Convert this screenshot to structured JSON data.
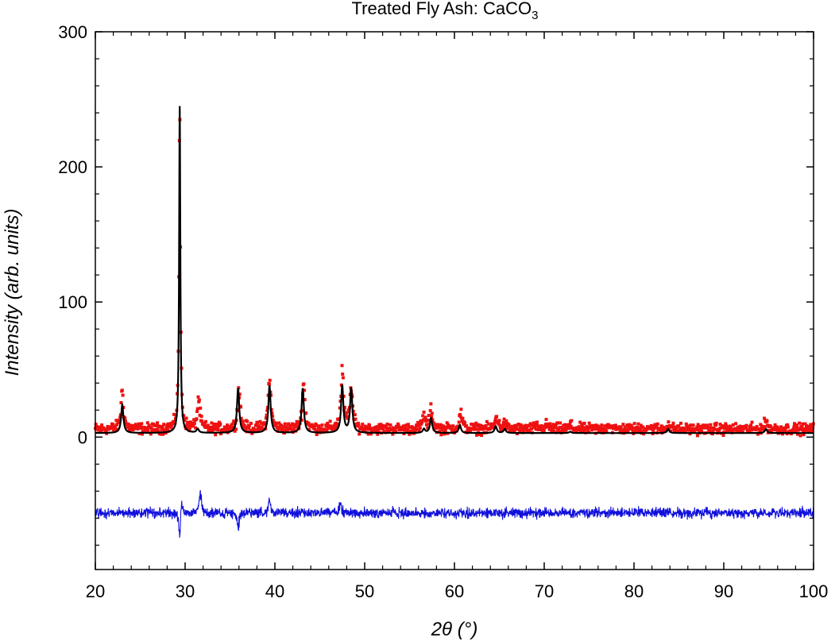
{
  "chart_data": {
    "type": "scatter",
    "title": {
      "main": "Treated Fly Ash: CaCO",
      "subscript": "3"
    },
    "xlabel": {
      "base": "2θ (°)"
    },
    "ylabel": "Intensity (arb. units)",
    "xlim": [
      20,
      100
    ],
    "ylim": [
      -98,
      300
    ],
    "xticks": [
      20,
      30,
      40,
      50,
      60,
      70,
      80,
      90,
      100
    ],
    "yticks_labeled": [
      0,
      100,
      200,
      300
    ],
    "grid": false,
    "legend": "none",
    "colors": {
      "observed": "#ee1111",
      "calculated": "#000000",
      "difference": "#1010dd"
    },
    "series": [
      {
        "role": "observed",
        "style": "points",
        "background": 6,
        "noise": 3.5,
        "x": [
          23.0,
          29.4,
          31.5,
          36.0,
          39.4,
          43.2,
          47.5,
          48.5,
          56.6,
          57.4,
          60.7,
          64.7,
          65.6,
          69.2,
          70.3,
          72.9,
          77.2,
          81.5,
          83.8,
          94.7
        ],
        "y": [
          34,
          250,
          28,
          36,
          45,
          40,
          48,
          38,
          16,
          20,
          18,
          16,
          10,
          8,
          9,
          9,
          10,
          8,
          10,
          12
        ]
      },
      {
        "role": "calculated",
        "style": "line",
        "background": 3,
        "x": [
          23.0,
          29.4,
          31.4,
          35.9,
          39.4,
          43.1,
          47.5,
          48.5,
          56.6,
          57.4,
          60.6,
          64.6,
          65.6,
          72.9,
          83.8,
          94.7
        ],
        "y": [
          24,
          245,
          6,
          36,
          38,
          36,
          38,
          36,
          6,
          14,
          9,
          8,
          6,
          4,
          6,
          6
        ]
      },
      {
        "role": "difference",
        "style": "line",
        "baseline": -56,
        "features": [
          {
            "x": 29.4,
            "dy": -24
          },
          {
            "x": 29.6,
            "dy": 16
          },
          {
            "x": 31.7,
            "dy": 20
          },
          {
            "x": 35.9,
            "dy": -14
          },
          {
            "x": 39.4,
            "dy": 12
          },
          {
            "x": 47.3,
            "dy": 10
          }
        ]
      }
    ]
  }
}
